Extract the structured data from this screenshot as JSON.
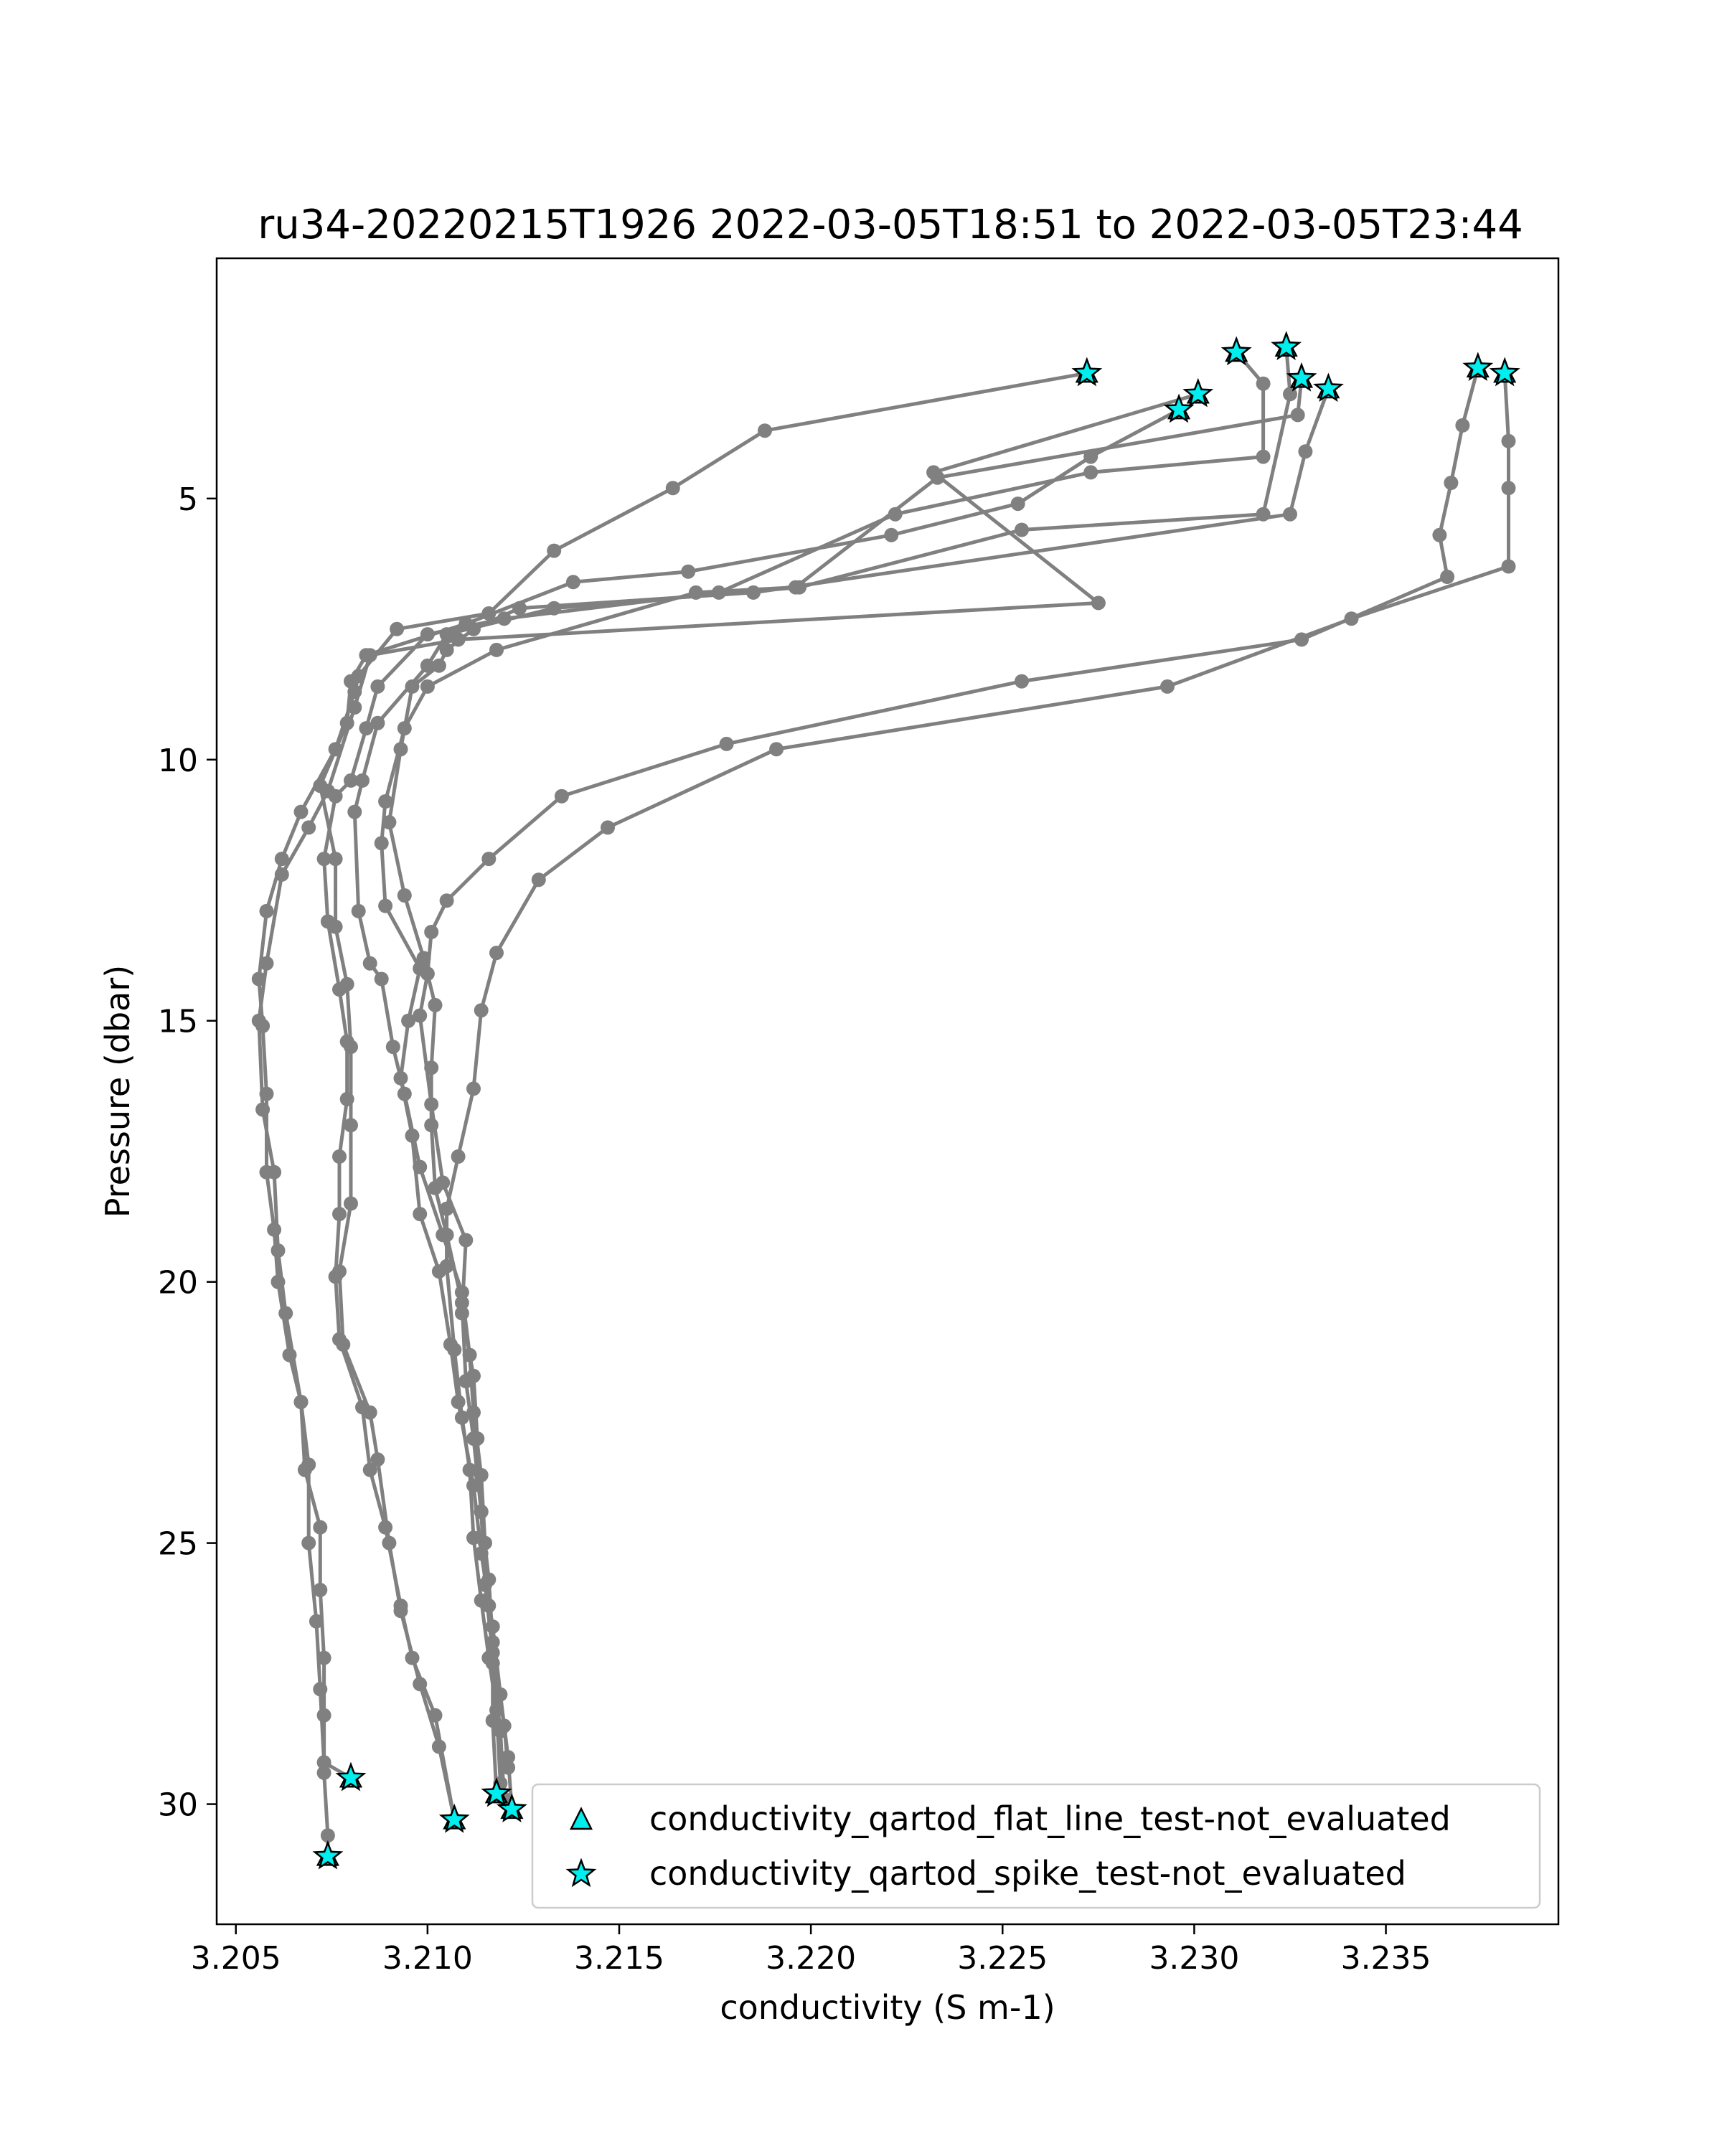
{
  "chart_data": {
    "type": "scatter",
    "title": "ru34-20220215T1926 2022-03-05T18:51 to 2022-03-05T23:44",
    "xlabel": "conductivity (S m-1)",
    "ylabel": "Pressure (dbar)",
    "xlim": [
      3.2045,
      3.2395
    ],
    "ylim": [
      32.3,
      0.4
    ],
    "y_inverted": true,
    "grid": false,
    "x_ticks": [
      {
        "value": 3.205,
        "label": "3.205"
      },
      {
        "value": 3.21,
        "label": "3.210"
      },
      {
        "value": 3.215,
        "label": "3.215"
      },
      {
        "value": 3.22,
        "label": "3.220"
      },
      {
        "value": 3.225,
        "label": "3.225"
      },
      {
        "value": 3.23,
        "label": "3.230"
      },
      {
        "value": 3.235,
        "label": "3.235"
      }
    ],
    "y_ticks": [
      {
        "value": 5,
        "label": "5"
      },
      {
        "value": 10,
        "label": "10"
      },
      {
        "value": 15,
        "label": "15"
      },
      {
        "value": 20,
        "label": "20"
      },
      {
        "value": 25,
        "label": "25"
      },
      {
        "value": 30,
        "label": "30"
      }
    ],
    "line_color": "#808080",
    "marker_color": "#00eeee",
    "marker_edge": "#000000",
    "legend": {
      "placement": "lower-right",
      "entries": [
        {
          "marker": "triangle",
          "label": "conductivity_qartod_flat_line_test-not_evaluated"
        },
        {
          "marker": "star",
          "label": "conductivity_qartod_spike_test-not_evaluated"
        }
      ]
    },
    "series": [
      {
        "points": [
          [
            3.2272,
            2.6
          ],
          [
            3.2188,
            3.7
          ],
          [
            3.2164,
            4.8
          ],
          [
            3.2133,
            6.0
          ],
          [
            3.2116,
            7.2
          ],
          [
            3.2092,
            7.5
          ],
          [
            3.2082,
            8.4
          ],
          [
            3.2081,
            8.7
          ],
          [
            3.2076,
            9.8
          ],
          [
            3.2067,
            11.0
          ],
          [
            3.2062,
            11.9
          ],
          [
            3.2058,
            12.9
          ],
          [
            3.2056,
            14.2
          ],
          [
            3.2057,
            15.1
          ],
          [
            3.2058,
            16.4
          ],
          [
            3.2058,
            17.9
          ],
          [
            3.206,
            19.0
          ],
          [
            3.2061,
            20.0
          ],
          [
            3.2064,
            21.4
          ],
          [
            3.2067,
            22.3
          ],
          [
            3.2068,
            23.6
          ],
          [
            3.2072,
            24.7
          ],
          [
            3.2072,
            25.9
          ],
          [
            3.2073,
            27.2
          ],
          [
            3.2073,
            28.3
          ],
          [
            3.2073,
            29.4
          ],
          [
            3.2074,
            30.6
          ],
          [
            3.2074,
            31.0
          ]
        ],
        "markers": [
          [
            3.2272,
            2.6
          ],
          [
            3.2074,
            31.0
          ]
        ]
      },
      {
        "points": [
          [
            3.2301,
            3.0
          ],
          [
            3.2232,
            4.5
          ],
          [
            3.2275,
            7.0
          ],
          [
            3.2108,
            7.7
          ],
          [
            3.2085,
            8.0
          ],
          [
            3.2081,
            9.0
          ],
          [
            3.2074,
            10.6
          ],
          [
            3.2069,
            11.3
          ],
          [
            3.2062,
            12.2
          ],
          [
            3.2058,
            13.9
          ],
          [
            3.2056,
            15.0
          ],
          [
            3.2057,
            16.7
          ],
          [
            3.206,
            17.9
          ],
          [
            3.2061,
            19.4
          ],
          [
            3.2063,
            20.6
          ],
          [
            3.2067,
            22.3
          ],
          [
            3.2069,
            23.5
          ],
          [
            3.2069,
            25.0
          ],
          [
            3.2071,
            26.5
          ],
          [
            3.2072,
            27.8
          ],
          [
            3.2073,
            29.2
          ],
          [
            3.208,
            29.5
          ]
        ],
        "markers": [
          [
            3.2301,
            3.0
          ],
          [
            3.208,
            29.5
          ]
        ]
      },
      {
        "points": [
          [
            3.2296,
            3.3
          ],
          [
            3.2273,
            4.2
          ],
          [
            3.2254,
            5.1
          ],
          [
            3.2221,
            5.7
          ],
          [
            3.2168,
            6.4
          ],
          [
            3.2138,
            6.6
          ],
          [
            3.211,
            7.4
          ],
          [
            3.2084,
            8.0
          ],
          [
            3.208,
            8.5
          ],
          [
            3.2079,
            9.3
          ],
          [
            3.2072,
            10.5
          ],
          [
            3.2076,
            11.9
          ],
          [
            3.2076,
            13.2
          ],
          [
            3.2079,
            14.3
          ],
          [
            3.208,
            15.5
          ],
          [
            3.208,
            17.0
          ],
          [
            3.208,
            18.5
          ],
          [
            3.2077,
            19.8
          ],
          [
            3.2078,
            21.2
          ],
          [
            3.2085,
            22.5
          ],
          [
            3.2087,
            23.4
          ],
          [
            3.209,
            25.0
          ],
          [
            3.2093,
            26.3
          ],
          [
            3.2098,
            27.7
          ],
          [
            3.2103,
            28.9
          ],
          [
            3.2107,
            30.3
          ]
        ],
        "markers": [
          [
            3.2296,
            3.3
          ],
          [
            3.2107,
            30.3
          ]
        ]
      },
      {
        "points": [
          [
            3.2311,
            2.2
          ],
          [
            3.2318,
            2.8
          ],
          [
            3.2318,
            4.2
          ],
          [
            3.2273,
            4.5
          ],
          [
            3.2222,
            5.3
          ],
          [
            3.2176,
            6.8
          ],
          [
            3.212,
            7.3
          ],
          [
            3.21,
            7.6
          ],
          [
            3.2087,
            8.6
          ],
          [
            3.2084,
            9.4
          ],
          [
            3.208,
            10.4
          ],
          [
            3.2076,
            10.7
          ],
          [
            3.2073,
            11.9
          ],
          [
            3.2074,
            13.1
          ],
          [
            3.2077,
            14.4
          ],
          [
            3.2079,
            15.4
          ],
          [
            3.2079,
            16.5
          ],
          [
            3.2077,
            17.6
          ],
          [
            3.2077,
            18.7
          ],
          [
            3.2076,
            19.9
          ],
          [
            3.2077,
            21.1
          ],
          [
            3.2083,
            22.4
          ],
          [
            3.2085,
            23.6
          ],
          [
            3.2089,
            24.7
          ],
          [
            3.2093,
            26.2
          ],
          [
            3.2096,
            27.2
          ],
          [
            3.2102,
            28.3
          ],
          [
            3.2107,
            30.3
          ]
        ],
        "markers": [
          [
            3.2311,
            2.2
          ]
        ]
      },
      {
        "points": [
          [
            3.2324,
            2.1
          ],
          [
            3.2325,
            3.0
          ],
          [
            3.2318,
            5.3
          ],
          [
            3.2255,
            5.6
          ],
          [
            3.2197,
            6.7
          ],
          [
            3.2133,
            7.1
          ],
          [
            3.2105,
            7.6
          ],
          [
            3.21,
            8.2
          ],
          [
            3.2087,
            9.3
          ],
          [
            3.2083,
            10.4
          ],
          [
            3.2081,
            11.0
          ],
          [
            3.2082,
            12.9
          ],
          [
            3.2085,
            13.9
          ],
          [
            3.2088,
            14.2
          ],
          [
            3.2091,
            15.5
          ],
          [
            3.2094,
            16.4
          ],
          [
            3.2098,
            17.8
          ],
          [
            3.2104,
            19.1
          ],
          [
            3.2109,
            20.2
          ],
          [
            3.2111,
            21.4
          ],
          [
            3.2112,
            22.5
          ],
          [
            3.2114,
            23.7
          ],
          [
            3.2115,
            25.0
          ],
          [
            3.2116,
            26.2
          ],
          [
            3.2117,
            27.3
          ],
          [
            3.2119,
            28.6
          ],
          [
            3.212,
            29.9
          ],
          [
            3.2118,
            29.8
          ]
        ],
        "markers": [
          [
            3.2324,
            2.1
          ],
          [
            3.2118,
            29.8
          ]
        ]
      },
      {
        "points": [
          [
            3.2328,
            2.7
          ],
          [
            3.2327,
            3.4
          ],
          [
            3.2233,
            4.6
          ],
          [
            3.2196,
            6.7
          ],
          [
            3.217,
            6.8
          ],
          [
            3.2118,
            7.9
          ],
          [
            3.21,
            8.6
          ],
          [
            3.2094,
            9.4
          ],
          [
            3.2089,
            10.8
          ],
          [
            3.2088,
            11.6
          ],
          [
            3.2089,
            12.8
          ],
          [
            3.2098,
            14.0
          ],
          [
            3.2095,
            15.0
          ],
          [
            3.2093,
            16.1
          ],
          [
            3.2096,
            17.2
          ],
          [
            3.2098,
            18.7
          ],
          [
            3.2103,
            19.8
          ],
          [
            3.2106,
            21.2
          ],
          [
            3.2108,
            22.3
          ],
          [
            3.2112,
            23.9
          ],
          [
            3.2114,
            25.2
          ],
          [
            3.2117,
            26.6
          ],
          [
            3.2119,
            27.9
          ],
          [
            3.2121,
            29.1
          ],
          [
            3.2122,
            30.1
          ]
        ],
        "markers": [
          [
            3.2328,
            2.7
          ],
          [
            3.2122,
            30.1
          ]
        ]
      },
      {
        "points": [
          [
            3.2335,
            2.9
          ],
          [
            3.2329,
            4.1
          ],
          [
            3.2325,
            5.3
          ],
          [
            3.2185,
            6.8
          ],
          [
            3.2124,
            7.1
          ],
          [
            3.2112,
            7.5
          ],
          [
            3.2105,
            7.9
          ],
          [
            3.2103,
            8.2
          ],
          [
            3.2096,
            8.6
          ],
          [
            3.2093,
            9.8
          ],
          [
            3.209,
            11.2
          ],
          [
            3.2094,
            12.6
          ],
          [
            3.2099,
            13.8
          ],
          [
            3.2102,
            14.7
          ],
          [
            3.2101,
            15.9
          ],
          [
            3.2101,
            17.0
          ],
          [
            3.2102,
            18.2
          ],
          [
            3.2105,
            19.1
          ],
          [
            3.2109,
            20.4
          ],
          [
            3.211,
            21.9
          ],
          [
            3.2112,
            23.0
          ],
          [
            3.2114,
            24.4
          ],
          [
            3.2116,
            25.7
          ],
          [
            3.2117,
            26.9
          ],
          [
            3.2117,
            28.4
          ],
          [
            3.2118,
            29.8
          ]
        ],
        "markers": [
          [
            3.2335,
            2.9
          ],
          [
            3.2118,
            29.8
          ]
        ]
      },
      {
        "points": [
          [
            3.2374,
            2.5
          ],
          [
            3.237,
            3.6
          ],
          [
            3.2367,
            4.7
          ],
          [
            3.2364,
            5.7
          ],
          [
            3.2366,
            6.5
          ],
          [
            3.2328,
            7.7
          ],
          [
            3.2255,
            8.5
          ],
          [
            3.2178,
            9.7
          ],
          [
            3.2135,
            10.7
          ],
          [
            3.2116,
            11.9
          ],
          [
            3.2105,
            12.7
          ],
          [
            3.2101,
            13.3
          ],
          [
            3.21,
            14.1
          ],
          [
            3.2098,
            14.9
          ],
          [
            3.2101,
            16.6
          ],
          [
            3.2104,
            18.1
          ],
          [
            3.211,
            19.2
          ],
          [
            3.2109,
            20.6
          ],
          [
            3.2112,
            21.8
          ],
          [
            3.2113,
            23.0
          ],
          [
            3.2114,
            24.4
          ],
          [
            3.2115,
            25.8
          ],
          [
            3.2117,
            27.1
          ],
          [
            3.212,
            28.5
          ],
          [
            3.2121,
            29.3
          ]
        ],
        "markers": [
          [
            3.2374,
            2.5
          ]
        ]
      },
      {
        "points": [
          [
            3.2381,
            2.6
          ],
          [
            3.2382,
            3.9
          ],
          [
            3.2382,
            4.8
          ],
          [
            3.2382,
            6.3
          ],
          [
            3.2341,
            7.3
          ],
          [
            3.2293,
            8.6
          ],
          [
            3.2191,
            9.8
          ],
          [
            3.2147,
            11.3
          ],
          [
            3.2129,
            12.3
          ],
          [
            3.2118,
            13.7
          ],
          [
            3.2114,
            14.8
          ],
          [
            3.2112,
            16.3
          ],
          [
            3.2108,
            17.6
          ],
          [
            3.2105,
            18.6
          ],
          [
            3.2105,
            19.7
          ],
          [
            3.2107,
            21.3
          ],
          [
            3.2109,
            22.6
          ],
          [
            3.2111,
            23.6
          ],
          [
            3.2112,
            24.9
          ],
          [
            3.2114,
            26.1
          ],
          [
            3.2116,
            27.2
          ],
          [
            3.2118,
            28.2
          ],
          [
            3.2119,
            29.6
          ]
        ],
        "markers": [
          [
            3.2381,
            2.6
          ]
        ]
      }
    ]
  }
}
